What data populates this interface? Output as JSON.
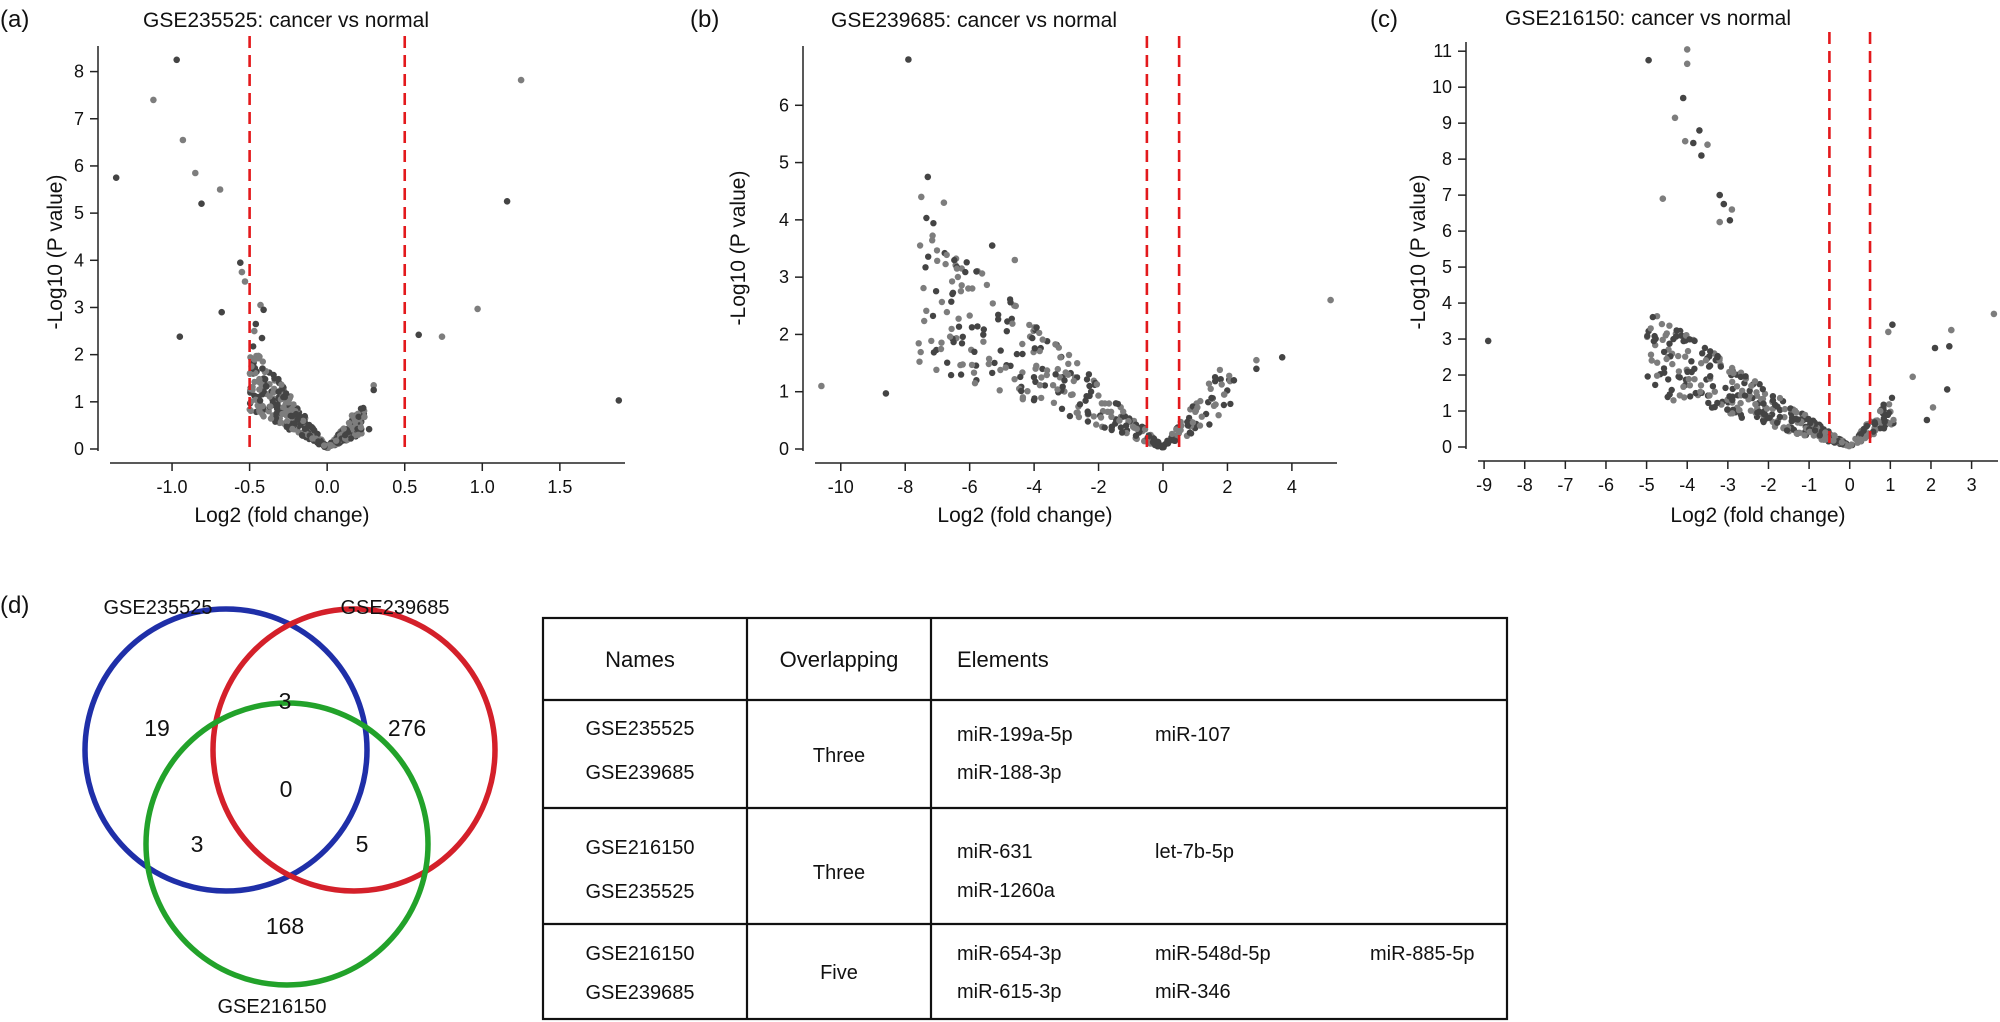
{
  "chart_data": [
    {
      "type": "scatter",
      "panel": "(a)",
      "title": "GSE235525: cancer vs normal",
      "xlabel": "Log2 (fold change)",
      "ylabel": "-Log10 (P value)",
      "xlim": [
        -1.4,
        1.92
      ],
      "ylim": [
        0,
        8.5
      ],
      "xticks": [
        -1.0,
        -0.5,
        0.0,
        0.5,
        1.0,
        1.5
      ],
      "xtick_labels": [
        "-1.0",
        "-0.5",
        "0.0",
        "0.5",
        "1.0",
        "1.5"
      ],
      "yticks": [
        0,
        1,
        2,
        3,
        4,
        5,
        6,
        7,
        8
      ],
      "thresholds": [
        -0.5,
        0.5
      ],
      "highlight_points": [
        [
          -1.36,
          5.75
        ],
        [
          -1.12,
          7.4
        ],
        [
          -0.95,
          2.38
        ],
        [
          -0.93,
          6.55
        ],
        [
          -0.97,
          8.25
        ],
        [
          -0.85,
          5.85
        ],
        [
          -0.81,
          5.2
        ],
        [
          -0.69,
          5.5
        ],
        [
          -0.68,
          2.9
        ],
        [
          -0.55,
          3.75
        ],
        [
          -0.56,
          3.95
        ],
        [
          -0.53,
          3.55
        ],
        [
          -0.46,
          2.65
        ],
        [
          -0.43,
          3.05
        ],
        [
          -0.41,
          2.95
        ],
        [
          -0.47,
          2.5
        ],
        [
          -0.42,
          2.35
        ],
        [
          0.3,
          1.35
        ],
        [
          0.3,
          1.25
        ],
        [
          1.25,
          7.82
        ],
        [
          1.16,
          5.25
        ],
        [
          0.97,
          2.97
        ],
        [
          0.59,
          2.42
        ],
        [
          0.74,
          2.38
        ],
        [
          1.88,
          1.03
        ],
        [
          0.16,
          0.71
        ],
        [
          0.27,
          0.42
        ],
        [
          0.24,
          0.68
        ]
      ],
      "cloud": {
        "x_range": [
          -0.5,
          0.24
        ],
        "y_max": 2.3,
        "n": 420,
        "apex_x": 0.0
      },
      "colors": {
        "dark": "#444444",
        "light": "#7d7d7d",
        "threshold": "#e3191c"
      }
    },
    {
      "type": "scatter",
      "panel": "(b)",
      "title": "GSE239685: cancer vs normal",
      "xlabel": "Log2 (fold change)",
      "ylabel": "-Log10 (P value)",
      "xlim": [
        -10.8,
        5.4
      ],
      "ylim": [
        0,
        7.0
      ],
      "xticks": [
        -10,
        -8,
        -6,
        -4,
        -2,
        0,
        2,
        4
      ],
      "xtick_labels": [
        "-10",
        "-8",
        "-6",
        "-4",
        "-2",
        "0",
        "2",
        "4"
      ],
      "yticks": [
        0,
        1,
        2,
        3,
        4,
        5,
        6
      ],
      "thresholds": [
        -0.5,
        0.5
      ],
      "highlight_points": [
        [
          -7.9,
          6.8
        ],
        [
          -10.6,
          1.1
        ],
        [
          -8.6,
          0.97
        ],
        [
          5.2,
          2.6
        ],
        [
          3.7,
          1.6
        ],
        [
          2.9,
          1.55
        ],
        [
          2.9,
          1.4
        ],
        [
          -7.5,
          4.4
        ],
        [
          -7.3,
          4.75
        ],
        [
          -6.8,
          4.3
        ],
        [
          -5.3,
          3.55
        ],
        [
          -4.6,
          3.3
        ],
        [
          2.2,
          1.2
        ],
        [
          1.9,
          0.95
        ]
      ],
      "cloud": {
        "x_range": [
          -7.6,
          2.1
        ],
        "y_max": 4.2,
        "n": 330,
        "apex_x": 0.0
      },
      "colors": {
        "dark": "#444444",
        "light": "#7d7d7d",
        "threshold": "#e3191c"
      }
    },
    {
      "type": "scatter",
      "panel": "(c)",
      "title": "GSE216150: cancer vs normal",
      "xlabel": "Log2 (fold change)",
      "ylabel": "-Log10 (P value)",
      "xlim": [
        -9.15,
        3.65
      ],
      "ylim": [
        0,
        11.2
      ],
      "xticks": [
        -9,
        -8,
        -7,
        -6,
        -5,
        -4,
        -3,
        -2,
        -1,
        0,
        1,
        2,
        3
      ],
      "xtick_labels": [
        "-9",
        "-8",
        "-7",
        "-6",
        "-5",
        "-4",
        "-3",
        "-2",
        "-1",
        "0",
        "1",
        "2",
        "3"
      ],
      "yticks": [
        0,
        1,
        2,
        3,
        4,
        5,
        6,
        7,
        8,
        9,
        10,
        11
      ],
      "thresholds": [
        -0.5,
        0.5
      ],
      "highlight_points": [
        [
          -8.9,
          2.95
        ],
        [
          -4.0,
          11.05
        ],
        [
          -4.95,
          10.75
        ],
        [
          -4.0,
          10.65
        ],
        [
          -4.1,
          9.7
        ],
        [
          -4.3,
          9.15
        ],
        [
          -3.7,
          8.8
        ],
        [
          -4.05,
          8.5
        ],
        [
          -3.85,
          8.45
        ],
        [
          -3.5,
          8.4
        ],
        [
          -3.65,
          8.1
        ],
        [
          -4.6,
          6.9
        ],
        [
          -3.1,
          6.75
        ],
        [
          -2.9,
          6.6
        ],
        [
          -2.95,
          6.3
        ],
        [
          -3.2,
          6.25
        ],
        [
          -3.2,
          7.0
        ],
        [
          3.55,
          3.7
        ],
        [
          2.45,
          2.8
        ],
        [
          2.5,
          3.25
        ],
        [
          2.1,
          2.75
        ],
        [
          1.55,
          1.95
        ],
        [
          1.05,
          3.4
        ],
        [
          0.95,
          3.2
        ],
        [
          2.4,
          1.6
        ],
        [
          2.05,
          1.1
        ],
        [
          1.9,
          0.75
        ],
        [
          0.75,
          1.0
        ]
      ],
      "cloud": {
        "x_range": [
          -5.0,
          1.1
        ],
        "y_max": 3.9,
        "n": 380,
        "apex_x": 0.0
      },
      "colors": {
        "dark": "#444444",
        "light": "#7d7d7d",
        "threshold": "#e3191c"
      }
    }
  ],
  "venn": {
    "panel": "(d)",
    "sets": [
      {
        "name": "GSE235525",
        "color": "#1f2fa8"
      },
      {
        "name": "GSE239685",
        "color": "#d4202a"
      },
      {
        "name": "GSE216150",
        "color": "#22a22a"
      }
    ],
    "regions": {
      "only_a": "19",
      "only_b": "276",
      "ab": "3",
      "abc": "0",
      "ac": "3",
      "bc": "5",
      "only_c": "168"
    }
  },
  "overlap_table": {
    "headers": [
      "Names",
      "Overlapping",
      "Elements"
    ],
    "rows": [
      {
        "names": [
          "GSE235525",
          "GSE239685"
        ],
        "overlapping": "Three",
        "elements": [
          [
            "miR-199a-5p",
            "miR-107",
            ""
          ],
          [
            "miR-188-3p",
            "",
            ""
          ]
        ]
      },
      {
        "names": [
          "GSE216150",
          "GSE235525"
        ],
        "overlapping": "Three",
        "elements": [
          [
            "miR-631",
            "let-7b-5p",
            ""
          ],
          [
            "miR-1260a",
            "",
            ""
          ]
        ]
      },
      {
        "names": [
          "GSE216150",
          "GSE239685"
        ],
        "overlapping": "Five",
        "elements": [
          [
            "miR-654-3p",
            "miR-548d-5p",
            "miR-885-5p"
          ],
          [
            "miR-615-3p",
            "miR-346",
            ""
          ]
        ]
      }
    ]
  }
}
